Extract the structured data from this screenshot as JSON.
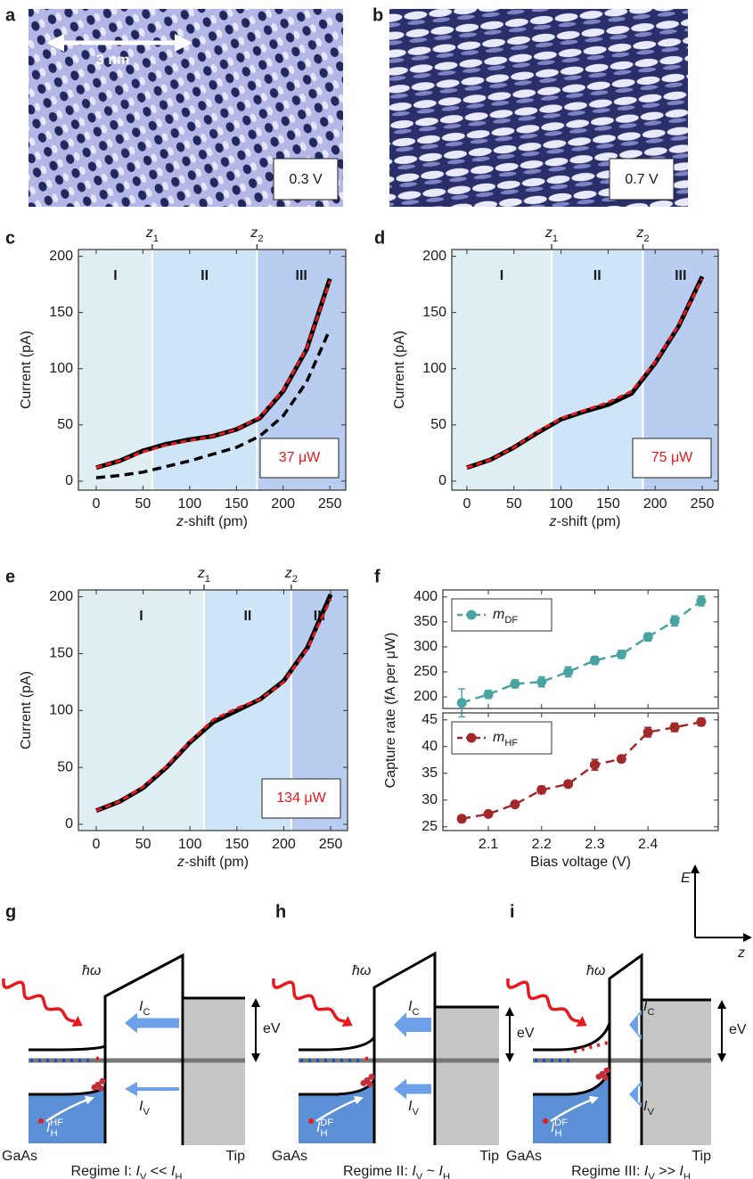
{
  "images": [
    {
      "panel": "a",
      "scale_bar": "3 nm",
      "bias": "0.3 V"
    },
    {
      "panel": "b",
      "bias": "0.7 V"
    }
  ],
  "chart_data": [
    {
      "type": "line",
      "panel": "c",
      "x": [
        0,
        25,
        50,
        75,
        100,
        125,
        150,
        175,
        200,
        225,
        250
      ],
      "series": [
        {
          "color": "#000000",
          "style": "solid",
          "values": [
            12,
            18,
            27,
            33,
            37,
            40,
            46,
            56,
            80,
            117,
            180
          ]
        },
        {
          "color": "#000000",
          "style": "dashed",
          "values": [
            3,
            5,
            8,
            13,
            18,
            24,
            30,
            40,
            58,
            88,
            135
          ]
        },
        {
          "color": "#e8191c",
          "style": "dotted",
          "values": [
            12,
            18,
            26,
            32,
            36,
            40,
            46,
            57,
            81,
            118,
            178
          ]
        }
      ],
      "regions": [
        {
          "label": "I",
          "color": "#dfeef2"
        },
        {
          "label": "II",
          "color": "#cde5f6"
        },
        {
          "label": "III",
          "color": "#b8cdf0"
        }
      ],
      "markers": [
        {
          "value": 60,
          "label": [
            {
              "text": "z",
              "style": "italic"
            },
            {
              "text": "1",
              "style": "sub"
            }
          ]
        },
        {
          "value": 172,
          "label": [
            {
              "text": "z",
              "style": "italic"
            },
            {
              "text": "2",
              "style": "sub"
            }
          ]
        }
      ],
      "annotation": {
        "text": "37 μW",
        "color": "#e8191c"
      },
      "xlabel": [
        {
          "text": "z",
          "style": "italic"
        },
        {
          "text": "-shift (pm)"
        }
      ],
      "ylabel": "Current (pA)",
      "xlim": [
        -19,
        267
      ],
      "ylim": [
        -8,
        206
      ],
      "xticks": [
        0,
        50,
        100,
        150,
        200,
        250
      ],
      "yticks": [
        0,
        50,
        100,
        150,
        200
      ]
    },
    {
      "type": "line",
      "panel": "d",
      "x": [
        0,
        25,
        50,
        75,
        100,
        125,
        150,
        175,
        200,
        225,
        250
      ],
      "series": [
        {
          "color": "#000000",
          "style": "solid",
          "values": [
            12,
            19,
            30,
            43,
            55,
            62,
            68,
            78,
            105,
            138,
            182
          ]
        },
        {
          "color": "#e8191c",
          "style": "dotted",
          "values": [
            12,
            19,
            30,
            44,
            56,
            63,
            70,
            80,
            106,
            139,
            180
          ]
        }
      ],
      "regions": [
        {
          "label": "I",
          "color": "#dfeef2"
        },
        {
          "label": "II",
          "color": "#cde5f6"
        },
        {
          "label": "III",
          "color": "#b8cdf0"
        }
      ],
      "markers": [
        {
          "value": 90,
          "label": [
            {
              "text": "z",
              "style": "italic"
            },
            {
              "text": "1",
              "style": "sub"
            }
          ]
        },
        {
          "value": 187,
          "label": [
            {
              "text": "z",
              "style": "italic"
            },
            {
              "text": "2",
              "style": "sub"
            }
          ]
        }
      ],
      "annotation": {
        "text": "75 μW",
        "color": "#e8191c"
      },
      "xlabel": [
        {
          "text": "z",
          "style": "italic"
        },
        {
          "text": "-shift (pm)"
        }
      ],
      "ylabel": "Current (pA)",
      "xlim": [
        -16,
        267
      ],
      "ylim": [
        -8,
        206
      ],
      "xticks": [
        0,
        50,
        100,
        150,
        200,
        250
      ],
      "yticks": [
        0,
        50,
        100,
        150,
        200
      ]
    },
    {
      "type": "line",
      "panel": "e",
      "x": [
        0,
        25,
        50,
        75,
        100,
        125,
        150,
        175,
        200,
        225,
        250
      ],
      "series": [
        {
          "color": "#000000",
          "style": "solid",
          "values": [
            12,
            20,
            32,
            50,
            72,
            90,
            100,
            110,
            126,
            155,
            202
          ]
        },
        {
          "color": "#e8191c",
          "style": "dotted",
          "values": [
            12,
            20,
            33,
            51,
            73,
            92,
            102,
            110,
            125,
            154,
            198
          ]
        }
      ],
      "regions": [
        {
          "label": "I",
          "color": "#dfeef2"
        },
        {
          "label": "II",
          "color": "#cde5f6"
        },
        {
          "label": "III",
          "color": "#b8cdf0"
        }
      ],
      "markers": [
        {
          "value": 115,
          "label": [
            {
              "text": "z",
              "style": "italic"
            },
            {
              "text": "1",
              "style": "sub"
            }
          ]
        },
        {
          "value": 208,
          "label": [
            {
              "text": "z",
              "style": "italic"
            },
            {
              "text": "2",
              "style": "sub"
            }
          ]
        }
      ],
      "annotation": {
        "text": "134 μW",
        "color": "#e8191c"
      },
      "xlabel": [
        {
          "text": "z",
          "style": "italic"
        },
        {
          "text": "-shift (pm)"
        }
      ],
      "ylabel": "Current (pA)",
      "xlim": [
        -19,
        268
      ],
      "ylim": [
        -5.5,
        206
      ],
      "xticks": [
        0,
        50,
        100,
        150,
        200,
        250
      ],
      "yticks": [
        0,
        50,
        100,
        150,
        200
      ]
    },
    {
      "type": "line",
      "panel": "f",
      "x": [
        2.05,
        2.1,
        2.15,
        2.2,
        2.25,
        2.3,
        2.35,
        2.4,
        2.45,
        2.5
      ],
      "series": [
        {
          "name": [
            {
              "text": "m",
              "style": "italic"
            },
            {
              "text": "DF",
              "style": "sub"
            }
          ],
          "color": "#4aa3a3",
          "style": "dashed",
          "markers": true,
          "values": [
            188,
            205,
            226,
            230,
            250,
            273,
            285,
            320,
            352,
            392
          ],
          "errors": [
            28,
            8,
            8,
            10,
            10,
            8,
            8,
            8,
            10,
            10
          ]
        }
      ],
      "ylabel": "Capture rate (fA per μW)",
      "xticklabels": false,
      "xlim": [
        2.0145,
        2.532
      ],
      "ylim": [
        176.8,
        414
      ],
      "xticks": [
        2.1,
        2.2,
        2.3,
        2.4
      ],
      "yticks": [
        200,
        250,
        300,
        350,
        400
      ]
    },
    {
      "type": "line",
      "x": [
        2.05,
        2.1,
        2.15,
        2.2,
        2.25,
        2.3,
        2.35,
        2.4,
        2.45,
        2.5
      ],
      "series": [
        {
          "name": [
            {
              "text": "m",
              "style": "italic"
            },
            {
              "text": "HF",
              "style": "sub"
            }
          ],
          "color": "#a3282a",
          "style": "dashed",
          "markers": true,
          "values": [
            26.5,
            27.4,
            29.2,
            31.9,
            33,
            36.6,
            37.7,
            42.7,
            43.6,
            44.6
          ],
          "errors": [
            0.6,
            0.5,
            0.5,
            0.7,
            0.6,
            1.0,
            0.6,
            0.9,
            0.8,
            0.7
          ]
        }
      ],
      "xlabel": "Bias voltage (V)",
      "xlim": [
        2.0145,
        2.532
      ],
      "ylim": [
        24.3,
        46.3
      ],
      "xticks": [
        2.1,
        2.2,
        2.3,
        2.4
      ],
      "yticks": [
        25,
        30,
        35,
        40,
        45
      ]
    }
  ],
  "energy_axis": {
    "vertical": "E",
    "horizontal": "z"
  },
  "diagrams": [
    {
      "panel": "g",
      "photon": "ħω",
      "ic": [
        {
          "text": "I",
          "style": "italic"
        },
        {
          "text": "C",
          "style": "sub"
        }
      ],
      "iv": [
        {
          "text": "I",
          "style": "italic"
        },
        {
          "text": "V",
          "style": "sub"
        }
      ],
      "ev": "eV",
      "ih": [
        {
          "text": "I",
          "style": "italic"
        },
        {
          "text": "H",
          "style": "sub"
        },
        {
          "text": "HF",
          "style": "sup"
        }
      ],
      "left": "GaAs",
      "right": "Tip",
      "caption": [
        {
          "text": "Regime I: "
        },
        {
          "text": "I",
          "style": "italic"
        },
        {
          "text": "V",
          "style": "sub"
        },
        {
          "text": " << "
        },
        {
          "text": "I",
          "style": "italic"
        },
        {
          "text": "H",
          "style": "sub"
        }
      ]
    },
    {
      "panel": "h",
      "photon": "ħω",
      "ic": [
        {
          "text": "I",
          "style": "italic"
        },
        {
          "text": "C",
          "style": "sub"
        }
      ],
      "iv": [
        {
          "text": "I",
          "style": "italic"
        },
        {
          "text": "V",
          "style": "sub"
        }
      ],
      "ev": "eV",
      "ih": [
        {
          "text": "I",
          "style": "italic"
        },
        {
          "text": "H",
          "style": "sub"
        },
        {
          "text": "DF",
          "style": "sup"
        }
      ],
      "left": "GaAs",
      "right": "Tip",
      "caption": [
        {
          "text": "Regime II: "
        },
        {
          "text": "I",
          "style": "italic"
        },
        {
          "text": "V",
          "style": "sub"
        },
        {
          "text": " ~ "
        },
        {
          "text": "I",
          "style": "italic"
        },
        {
          "text": "H",
          "style": "sub"
        }
      ]
    },
    {
      "panel": "i",
      "photon": "ħω",
      "ic": [
        {
          "text": "I",
          "style": "italic"
        },
        {
          "text": "C",
          "style": "sub"
        }
      ],
      "iv": [
        {
          "text": "I",
          "style": "italic"
        },
        {
          "text": "V",
          "style": "sub"
        }
      ],
      "ev": "eV",
      "ih": [
        {
          "text": "I",
          "style": "italic"
        },
        {
          "text": "H",
          "style": "sub"
        },
        {
          "text": "DF",
          "style": "sup"
        }
      ],
      "left": "GaAs",
      "right": "Tip",
      "caption": [
        {
          "text": "Regime III: "
        },
        {
          "text": "I",
          "style": "italic"
        },
        {
          "text": "V",
          "style": "sub"
        },
        {
          "text": " >> "
        },
        {
          "text": "I",
          "style": "italic"
        },
        {
          "text": "H",
          "style": "sub"
        }
      ]
    }
  ]
}
